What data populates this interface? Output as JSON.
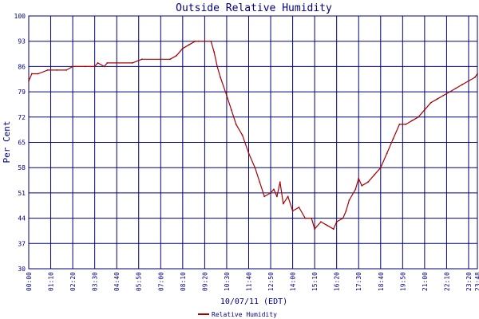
{
  "chart_data": {
    "type": "line",
    "title": "Outside Relative Humidity",
    "xlabel": "10/07/11 (EDT)",
    "ylabel": "Per Cent",
    "ylim": [
      30,
      100
    ],
    "yticks": [
      "100",
      "93",
      "86",
      "79",
      "72",
      "65",
      "58",
      "51",
      "44",
      "37",
      "30"
    ],
    "xticks": [
      "00:00",
      "01:10",
      "02:20",
      "03:30",
      "04:40",
      "05:50",
      "07:00",
      "08:10",
      "09:20",
      "10:30",
      "11:40",
      "12:50",
      "14:00",
      "15:10",
      "16:20",
      "17:30",
      "18:40",
      "19:50",
      "21:00",
      "22:10",
      "23:20",
      "23:48"
    ],
    "grid": true,
    "legend_position": "bottom-center",
    "series": [
      {
        "name": "Relative Humidity",
        "color": "#aa0000",
        "points": [
          [
            "00:00",
            82
          ],
          [
            "00:10",
            84
          ],
          [
            "00:30",
            84
          ],
          [
            "01:00",
            85
          ],
          [
            "01:10",
            85
          ],
          [
            "01:30",
            85
          ],
          [
            "02:00",
            85
          ],
          [
            "02:20",
            86
          ],
          [
            "03:00",
            86
          ],
          [
            "03:30",
            86
          ],
          [
            "03:40",
            87
          ],
          [
            "04:00",
            86
          ],
          [
            "04:10",
            87
          ],
          [
            "04:40",
            87
          ],
          [
            "05:30",
            87
          ],
          [
            "06:00",
            88
          ],
          [
            "07:00",
            88
          ],
          [
            "07:30",
            88
          ],
          [
            "07:50",
            89
          ],
          [
            "08:10",
            91
          ],
          [
            "08:30",
            92
          ],
          [
            "08:50",
            93
          ],
          [
            "09:00",
            93
          ],
          [
            "09:20",
            93
          ],
          [
            "09:40",
            93
          ],
          [
            "09:50",
            90
          ],
          [
            "10:00",
            86
          ],
          [
            "10:10",
            83
          ],
          [
            "10:30",
            78
          ],
          [
            "10:45",
            74
          ],
          [
            "11:00",
            70
          ],
          [
            "11:20",
            67
          ],
          [
            "11:40",
            62
          ],
          [
            "12:00",
            58
          ],
          [
            "12:15",
            54
          ],
          [
            "12:30",
            50
          ],
          [
            "12:50",
            51
          ],
          [
            "13:00",
            52
          ],
          [
            "13:10",
            50
          ],
          [
            "13:20",
            54
          ],
          [
            "13:30",
            48
          ],
          [
            "13:45",
            50
          ],
          [
            "14:00",
            46
          ],
          [
            "14:20",
            47
          ],
          [
            "14:40",
            44
          ],
          [
            "15:00",
            44
          ],
          [
            "15:10",
            41
          ],
          [
            "15:30",
            43
          ],
          [
            "15:50",
            42
          ],
          [
            "16:10",
            41
          ],
          [
            "16:20",
            43
          ],
          [
            "16:40",
            44
          ],
          [
            "16:50",
            46
          ],
          [
            "17:00",
            49
          ],
          [
            "17:20",
            52
          ],
          [
            "17:30",
            55
          ],
          [
            "17:40",
            53
          ],
          [
            "18:00",
            54
          ],
          [
            "18:20",
            56
          ],
          [
            "18:40",
            58
          ],
          [
            "19:00",
            62
          ],
          [
            "19:20",
            66
          ],
          [
            "19:40",
            70
          ],
          [
            "20:00",
            70
          ],
          [
            "20:20",
            71
          ],
          [
            "20:40",
            72
          ],
          [
            "21:00",
            74
          ],
          [
            "21:20",
            76
          ],
          [
            "21:40",
            77
          ],
          [
            "22:00",
            78
          ],
          [
            "22:20",
            79
          ],
          [
            "22:40",
            80
          ],
          [
            "23:00",
            81
          ],
          [
            "23:20",
            82
          ],
          [
            "23:40",
            83
          ],
          [
            "23:48",
            84
          ]
        ]
      }
    ]
  }
}
